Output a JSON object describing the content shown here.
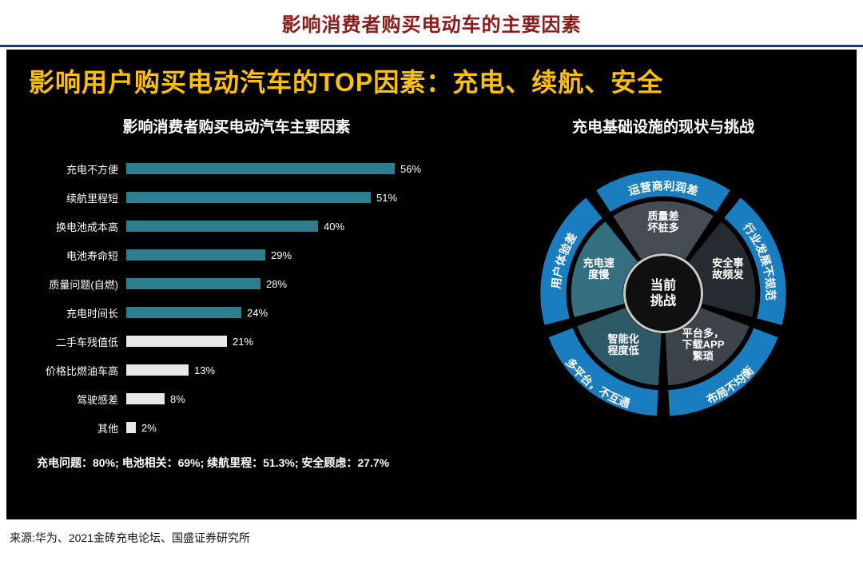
{
  "page": {
    "title": "影响消费者购买电动车的主要因素",
    "source": "来源:华为、2021金砖充电论坛、国盛证券研究所"
  },
  "panel": {
    "headline": "影响用户购买电动汽车的TOP因素：充电、续航、安全",
    "left_title": "影响消费者购买电动汽车主要因素",
    "right_title": "充电基础设施的现状与挑战"
  },
  "chart_data": {
    "type": "bar",
    "orientation": "horizontal",
    "title": "影响消费者购买电动汽车主要因素",
    "categories": [
      "充电不方便",
      "续航里程短",
      "换电池成本高",
      "电池寿命短",
      "质量问题(自燃)",
      "充电时间长",
      "二手车残值低",
      "价格比燃油车高",
      "驾驶感差",
      "其他"
    ],
    "values": [
      56,
      51,
      40,
      29,
      28,
      24,
      21,
      13,
      8,
      2
    ],
    "unit": "%",
    "xlim": [
      0,
      60
    ],
    "secondary_from_index": 6,
    "annotation": "充电问题：80%; 电池相关：69%; 续航里程：51.3%; 安全顾虑：27.7%"
  },
  "wheel": {
    "center_lines": [
      "当前",
      "挑战"
    ],
    "segments": [
      {
        "wedge_lines": [
          "质量差",
          "坏桩多"
        ],
        "ring_label": "运营商利润差"
      },
      {
        "wedge_lines": [
          "安全事",
          "故频发"
        ],
        "ring_label": "行业发展不规范"
      },
      {
        "wedge_lines": [
          "平台多，",
          "下载APP",
          "繁琐"
        ],
        "ring_label": "布局不均衡"
      },
      {
        "wedge_lines": [
          "智能化",
          "程度低"
        ],
        "ring_label": "多平台，不互通"
      },
      {
        "wedge_lines": [
          "充电速",
          "度慢"
        ],
        "ring_label": "用户体验差"
      }
    ]
  },
  "colors": {
    "page_title": "#8b1a1a",
    "divider": "#1f3864",
    "panel_bg": "#000000",
    "headline": "#ffc000",
    "bar_primary": "#2e7e8f",
    "bar_secondary": "#e8e8e8",
    "ring": "#1a7dc0",
    "wedges": [
      "#454c54",
      "#262b31",
      "#3c434b",
      "#2e5a68",
      "#356f80"
    ],
    "center_bg": "#101010",
    "center_ring": "#c9c9c9"
  }
}
